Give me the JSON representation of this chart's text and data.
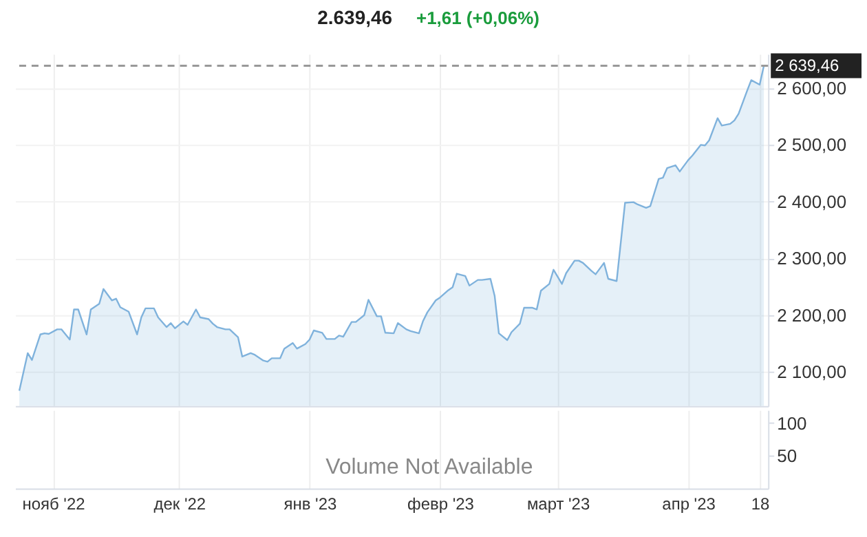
{
  "chart_data": [
    {
      "type": "area",
      "title": "2.639,46",
      "subtitle": "+1,61 (+0,06%)",
      "x": [
        "2022-10-24",
        "2022-10-26",
        "2022-10-27",
        "2022-10-29",
        "2022-10-30",
        "2022-10-31",
        "2022-11-02",
        "2022-11-03",
        "2022-11-05",
        "2022-11-06",
        "2022-11-07",
        "2022-11-09",
        "2022-11-10",
        "2022-11-12",
        "2022-11-13",
        "2022-11-15",
        "2022-11-16",
        "2022-11-17",
        "2022-11-19",
        "2022-11-21",
        "2022-11-22",
        "2022-11-23",
        "2022-11-25",
        "2022-11-26",
        "2022-11-28",
        "2022-11-29",
        "2022-11-30",
        "2022-12-02",
        "2022-12-03",
        "2022-12-05",
        "2022-12-06",
        "2022-12-08",
        "2022-12-09",
        "2022-12-10",
        "2022-12-12",
        "2022-12-13",
        "2022-12-15",
        "2022-12-16",
        "2022-12-18",
        "2022-12-19",
        "2022-12-21",
        "2022-12-22",
        "2022-12-23",
        "2022-12-25",
        "2022-12-26",
        "2022-12-28",
        "2022-12-29",
        "2022-12-31",
        "2023-01-01",
        "2023-01-02",
        "2023-01-04",
        "2023-01-05",
        "2023-01-07",
        "2023-01-08",
        "2023-01-09",
        "2023-01-11",
        "2023-01-12",
        "2023-01-14",
        "2023-01-15",
        "2023-01-17",
        "2023-01-18",
        "2023-01-19",
        "2023-01-21",
        "2023-01-22",
        "2023-01-24",
        "2023-01-25",
        "2023-01-27",
        "2023-01-28",
        "2023-01-29",
        "2023-01-31",
        "2023-02-01",
        "2023-02-03",
        "2023-02-04",
        "2023-02-05",
        "2023-02-07",
        "2023-02-08",
        "2023-02-10",
        "2023-02-11",
        "2023-02-13",
        "2023-02-14",
        "2023-02-15",
        "2023-02-17",
        "2023-02-18",
        "2023-02-20",
        "2023-02-21",
        "2023-02-23",
        "2023-02-24",
        "2023-02-25",
        "2023-02-27",
        "2023-02-28",
        "2023-03-02",
        "2023-03-03",
        "2023-03-05",
        "2023-03-06",
        "2023-03-07",
        "2023-03-09",
        "2023-03-10",
        "2023-03-12",
        "2023-03-13",
        "2023-03-15",
        "2023-03-17",
        "2023-03-19",
        "2023-03-20",
        "2023-03-22",
        "2023-03-23",
        "2023-03-25",
        "2023-03-26",
        "2023-03-27",
        "2023-03-29",
        "2023-03-30",
        "2023-04-01",
        "2023-04-02",
        "2023-04-04",
        "2023-04-05",
        "2023-04-06",
        "2023-04-08",
        "2023-04-09",
        "2023-04-11",
        "2023-04-12",
        "2023-04-13",
        "2023-04-15",
        "2023-04-16",
        "2023-04-18",
        "2023-04-19"
      ],
      "series": [
        {
          "color": "#7fb2dc",
          "values": [
            2067,
            2133,
            2121,
            2166,
            2168,
            2167,
            2175,
            2175,
            2157,
            2210,
            2210,
            2166,
            2210,
            2220,
            2246,
            2226,
            2229,
            2214,
            2206,
            2166,
            2196,
            2212,
            2212,
            2196,
            2179,
            2186,
            2177,
            2189,
            2183,
            2210,
            2196,
            2193,
            2185,
            2179,
            2175,
            2175,
            2161,
            2127,
            2133,
            2130,
            2120,
            2118,
            2124,
            2124,
            2141,
            2151,
            2141,
            2149,
            2157,
            2173,
            2169,
            2158,
            2158,
            2164,
            2162,
            2188,
            2188,
            2200,
            2227,
            2198,
            2198,
            2169,
            2168,
            2186,
            2175,
            2172,
            2168,
            2190,
            2205,
            2226,
            2231,
            2244,
            2249,
            2273,
            2269,
            2252,
            2262,
            2262,
            2264,
            2234,
            2168,
            2156,
            2170,
            2185,
            2213,
            2213,
            2210,
            2243,
            2255,
            2280,
            2255,
            2274,
            2296,
            2296,
            2292,
            2278,
            2272,
            2292,
            2264,
            2260,
            2398,
            2399,
            2395,
            2389,
            2392,
            2440,
            2442,
            2459,
            2464,
            2453,
            2473,
            2481,
            2500,
            2499,
            2508,
            2547,
            2534,
            2537,
            2543,
            2555,
            2595,
            2614,
            2606,
            2639.46
          ]
        }
      ],
      "xlim": [
        "2022-10-23",
        "2023-04-20"
      ],
      "xticks": [
        {
          "value": "2022-11-01",
          "label": null
        },
        {
          "value": "2022-12-01",
          "label": null
        },
        {
          "value": "2023-01-01",
          "label": null
        },
        {
          "value": "2023-02-01",
          "label": null
        },
        {
          "value": "2023-03-01",
          "label": null
        },
        {
          "value": "2023-04-01",
          "label": null
        },
        {
          "value": "2023-04-18",
          "label": null
        }
      ],
      "ylim": [
        2040,
        2660
      ],
      "yticks": [
        {
          "value": 2100,
          "label": "2 100,00"
        },
        {
          "value": 2200,
          "label": "2 200,00"
        },
        {
          "value": 2300,
          "label": "2 300,00"
        },
        {
          "value": 2400,
          "label": "2 400,00"
        },
        {
          "value": 2500,
          "label": "2 500,00"
        },
        {
          "value": 2600,
          "label": "2 600,00"
        }
      ],
      "ref_lines": [
        {
          "axis": "y",
          "value": 2639.46,
          "label": "2 639,46",
          "color": "#999999",
          "line_style": "dashed"
        }
      ],
      "grid": true,
      "tick_labels": "y"
    },
    {
      "type": "bar",
      "annotations": [
        "Volume Not Available"
      ],
      "xlim": [
        "2022-10-23",
        "2023-04-20"
      ],
      "xticks": [
        {
          "value": "2022-11-01",
          "label": "нояб '22"
        },
        {
          "value": "2022-12-01",
          "label": "дек '22"
        },
        {
          "value": "2023-01-01",
          "label": "янв '23"
        },
        {
          "value": "2023-02-01",
          "label": "февр '23"
        },
        {
          "value": "2023-03-01",
          "label": "март '23"
        },
        {
          "value": "2023-04-01",
          "label": "апр '23"
        },
        {
          "value": "2023-04-18",
          "label": "18"
        }
      ],
      "ylim": [
        0,
        120
      ],
      "yticks": [
        50,
        100
      ],
      "grid": "x"
    }
  ]
}
